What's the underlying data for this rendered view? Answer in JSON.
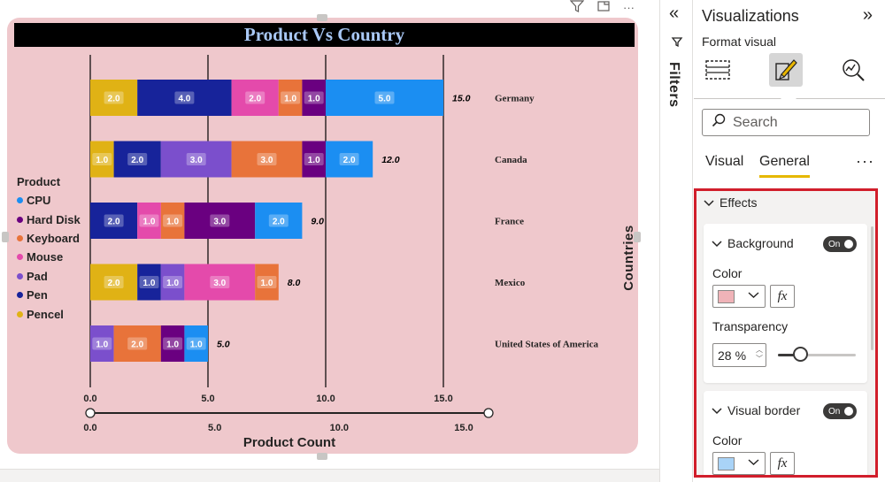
{
  "visual_header": {
    "filter_icon": "funnel-icon",
    "focus_icon": "focus-mode-icon",
    "more_icon": "more-options-icon"
  },
  "chart_data": {
    "type": "bar",
    "orientation": "horizontal",
    "stacked": true,
    "title": "Product Vs Country",
    "xlabel": "Product Count",
    "ylabel": "Countries",
    "xlim": [
      0,
      15
    ],
    "x_ticks": [
      "0.0",
      "5.0",
      "10.0",
      "15.0"
    ],
    "slider_ticks": [
      "0.0",
      "5.0",
      "10.0",
      "15.0"
    ],
    "legend_title": "Product",
    "legend_position": "left",
    "grid": true,
    "categories": [
      "Germany",
      "Canada",
      "France",
      "Mexico",
      "United States of America"
    ],
    "totals": [
      15,
      12,
      9,
      8,
      5
    ],
    "total_labels": [
      "15.0",
      "12.0",
      "9.0",
      "8.0",
      "5.0"
    ],
    "series": [
      {
        "name": "CPU",
        "color": "#1b8ef2"
      },
      {
        "name": "Hard Disk",
        "color": "#6a0080"
      },
      {
        "name": "Keyboard",
        "color": "#e8733a"
      },
      {
        "name": "Mouse",
        "color": "#e44aab"
      },
      {
        "name": "Pad",
        "color": "#7b4fcc"
      },
      {
        "name": "Pen",
        "color": "#17239a"
      },
      {
        "name": "Pencel",
        "color": "#e0b215"
      }
    ],
    "segments": [
      [
        {
          "s": "Pencel",
          "v": 2.0
        },
        {
          "s": "Pen",
          "v": 4.0
        },
        {
          "s": "Mouse",
          "v": 2.0
        },
        {
          "s": "Keyboard",
          "v": 1.0
        },
        {
          "s": "Hard Disk",
          "v": 1.0
        },
        {
          "s": "CPU",
          "v": 5.0
        }
      ],
      [
        {
          "s": "Pencel",
          "v": 1.0
        },
        {
          "s": "Pen",
          "v": 2.0
        },
        {
          "s": "Pad",
          "v": 3.0
        },
        {
          "s": "Keyboard",
          "v": 3.0
        },
        {
          "s": "Hard Disk",
          "v": 1.0
        },
        {
          "s": "CPU",
          "v": 2.0
        }
      ],
      [
        {
          "s": "Pen",
          "v": 2.0
        },
        {
          "s": "Mouse",
          "v": 1.0
        },
        {
          "s": "Keyboard",
          "v": 1.0
        },
        {
          "s": "Hard Disk",
          "v": 3.0
        },
        {
          "s": "CPU",
          "v": 2.0
        }
      ],
      [
        {
          "s": "Pencel",
          "v": 2.0
        },
        {
          "s": "Pen",
          "v": 1.0
        },
        {
          "s": "Pad",
          "v": 1.0
        },
        {
          "s": "Mouse",
          "v": 3.0
        },
        {
          "s": "Keyboard",
          "v": 1.0
        }
      ],
      [
        {
          "s": "Pad",
          "v": 1.0
        },
        {
          "s": "Keyboard",
          "v": 2.0
        },
        {
          "s": "Hard Disk",
          "v": 1.0
        },
        {
          "s": "CPU",
          "v": 1.0
        }
      ]
    ],
    "background_color": "#efc8cc",
    "title_bar_color": "#000000",
    "title_color": "#a9c8f5"
  },
  "filters_pane": {
    "label": "Filters",
    "collapse_icon": "double-chevron-left-icon",
    "funnel_icon": "funnel-icon"
  },
  "viz_pane": {
    "title": "Visualizations",
    "expand_icon": "double-chevron-right-icon",
    "subtitle": "Format visual",
    "icons": [
      "build-visual-icon",
      "format-visual-icon",
      "analytics-icon"
    ],
    "search_placeholder": "Search",
    "tabs": [
      {
        "label": "Visual"
      },
      {
        "label": "General"
      }
    ],
    "active_tab": "General",
    "effects": {
      "title": "Effects",
      "background": {
        "title": "Background",
        "toggle": "On",
        "color_label": "Color",
        "color": "#f0b3b8",
        "transparency_label": "Transparency",
        "transparency_value": "28",
        "transparency_unit": "%",
        "transparency_level": 0.28
      },
      "visual_border": {
        "title": "Visual border",
        "toggle": "On",
        "color_label": "Color",
        "color": "#a9d3f7"
      }
    }
  }
}
